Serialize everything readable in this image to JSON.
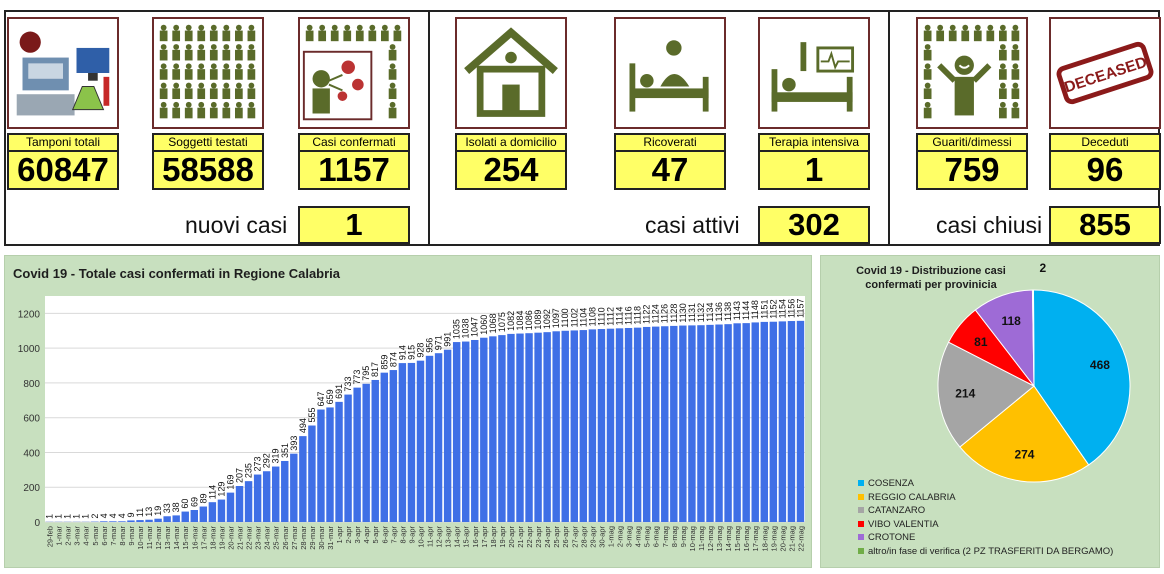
{
  "cards": [
    {
      "label": "Tamponi totali",
      "value": "60847",
      "icon": "lab-equipment-icon"
    },
    {
      "label": "Soggetti testati",
      "value": "58588",
      "icon": "people-grid-icon"
    },
    {
      "label": "Casi confermati",
      "value": "1157",
      "icon": "virus-person-icon"
    },
    {
      "label": "Isolati a domicilio",
      "value": "254",
      "icon": "house-icon"
    },
    {
      "label": "Ricoverati",
      "value": "47",
      "icon": "hospital-bed-icon"
    },
    {
      "label": "Terapia intensiva",
      "value": "1",
      "icon": "icu-bed-icon"
    },
    {
      "label": "Guariti/dimessi",
      "value": "759",
      "icon": "recovered-person-icon"
    },
    {
      "label": "Deceduti",
      "value": "96",
      "icon": "deceased-stamp-icon"
    }
  ],
  "deceased_stamp_text": "DECEASED",
  "summary": {
    "nuovi_label": "nuovi casi",
    "nuovi_value": "1",
    "attivi_label": "casi attivi",
    "attivi_value": "302",
    "chiusi_label": "casi chiusi",
    "chiusi_value": "855"
  },
  "colors": {
    "highlight_yellow": "#ffff66",
    "chart_background": "#c8e0bf",
    "bar_blue": "#3f6fe6",
    "icon_olive": "#5a6b2a",
    "icon_border": "#6b2b2b"
  },
  "chart_data": [
    {
      "type": "bar",
      "title": "Covid 19 - Totale casi confermati in Regione Calabria",
      "ylim": [
        0,
        1300
      ],
      "yticks": [
        0,
        200,
        400,
        600,
        800,
        1000,
        1200
      ],
      "grid": true,
      "categories": [
        "29-feb",
        "1-mar",
        "2-mar",
        "3-mar",
        "4-mar",
        "5-mar",
        "6-mar",
        "7-mar",
        "8-mar",
        "9-mar",
        "10-mar",
        "11-mar",
        "12-mar",
        "13-mar",
        "14-mar",
        "15-mar",
        "16-mar",
        "17-mar",
        "18-mar",
        "19-mar",
        "20-mar",
        "21-mar",
        "22-mar",
        "23-mar",
        "24-mar",
        "25-mar",
        "26-mar",
        "27-mar",
        "28-mar",
        "29-mar",
        "30-mar",
        "31-mar",
        "1-apr",
        "2-apr",
        "3-apr",
        "4-apr",
        "5-apr",
        "6-apr",
        "7-apr",
        "8-apr",
        "9-apr",
        "10-apr",
        "11-apr",
        "12-apr",
        "13-apr",
        "14-apr",
        "15-apr",
        "16-apr",
        "17-apr",
        "18-apr",
        "19-apr",
        "20-apr",
        "21-apr",
        "22-apr",
        "23-apr",
        "24-apr",
        "25-apr",
        "26-apr",
        "27-apr",
        "28-apr",
        "29-apr",
        "30-apr",
        "1-mag",
        "2-mag",
        "3-mag",
        "4-mag",
        "5-mag",
        "6-mag",
        "7-mag",
        "8-mag",
        "9-mag",
        "10-mag",
        "11-mag",
        "12-mag",
        "13-mag",
        "14-mag",
        "15-mag",
        "16-mag",
        "17-mag",
        "18-mag",
        "19-mag",
        "20-mag",
        "21-mag",
        "22-mag"
      ],
      "values": [
        1,
        1,
        1,
        1,
        1,
        2,
        4,
        4,
        4,
        9,
        11,
        13,
        19,
        33,
        38,
        60,
        69,
        89,
        114,
        129,
        169,
        207,
        235,
        273,
        292,
        319,
        351,
        393,
        494,
        555,
        647,
        659,
        691,
        733,
        773,
        795,
        817,
        859,
        874,
        914,
        915,
        928,
        956,
        971,
        991,
        1035,
        1038,
        1047,
        1060,
        1068,
        1075,
        1082,
        1084,
        1086,
        1089,
        1092,
        1097,
        1100,
        1102,
        1104,
        1108,
        1110,
        1112,
        1114,
        1116,
        1118,
        1122,
        1124,
        1126,
        1128,
        1130,
        1131,
        1132,
        1134,
        1136,
        1138,
        1143,
        1144,
        1148,
        1151,
        1152,
        1154,
        1156,
        1157
      ]
    },
    {
      "type": "pie",
      "title": "Covid 19 - Distribuzione casi confermati per provinicia",
      "slices": [
        {
          "name": "COSENZA",
          "value": 468,
          "color": "#00b0f0"
        },
        {
          "name": "REGGIO CALABRIA",
          "value": 274,
          "color": "#ffc000"
        },
        {
          "name": "CATANZARO",
          "value": 214,
          "color": "#a5a5a5"
        },
        {
          "name": "VIBO VALENTIA",
          "value": 81,
          "color": "#ff0000"
        },
        {
          "name": "CROTONE",
          "value": 118,
          "color": "#9e6bd6"
        },
        {
          "name": "altro/in fase di verifica (2 PZ TRASFERITI DA BERGAMO)",
          "value": 2,
          "color": "#70ad47"
        }
      ]
    }
  ]
}
